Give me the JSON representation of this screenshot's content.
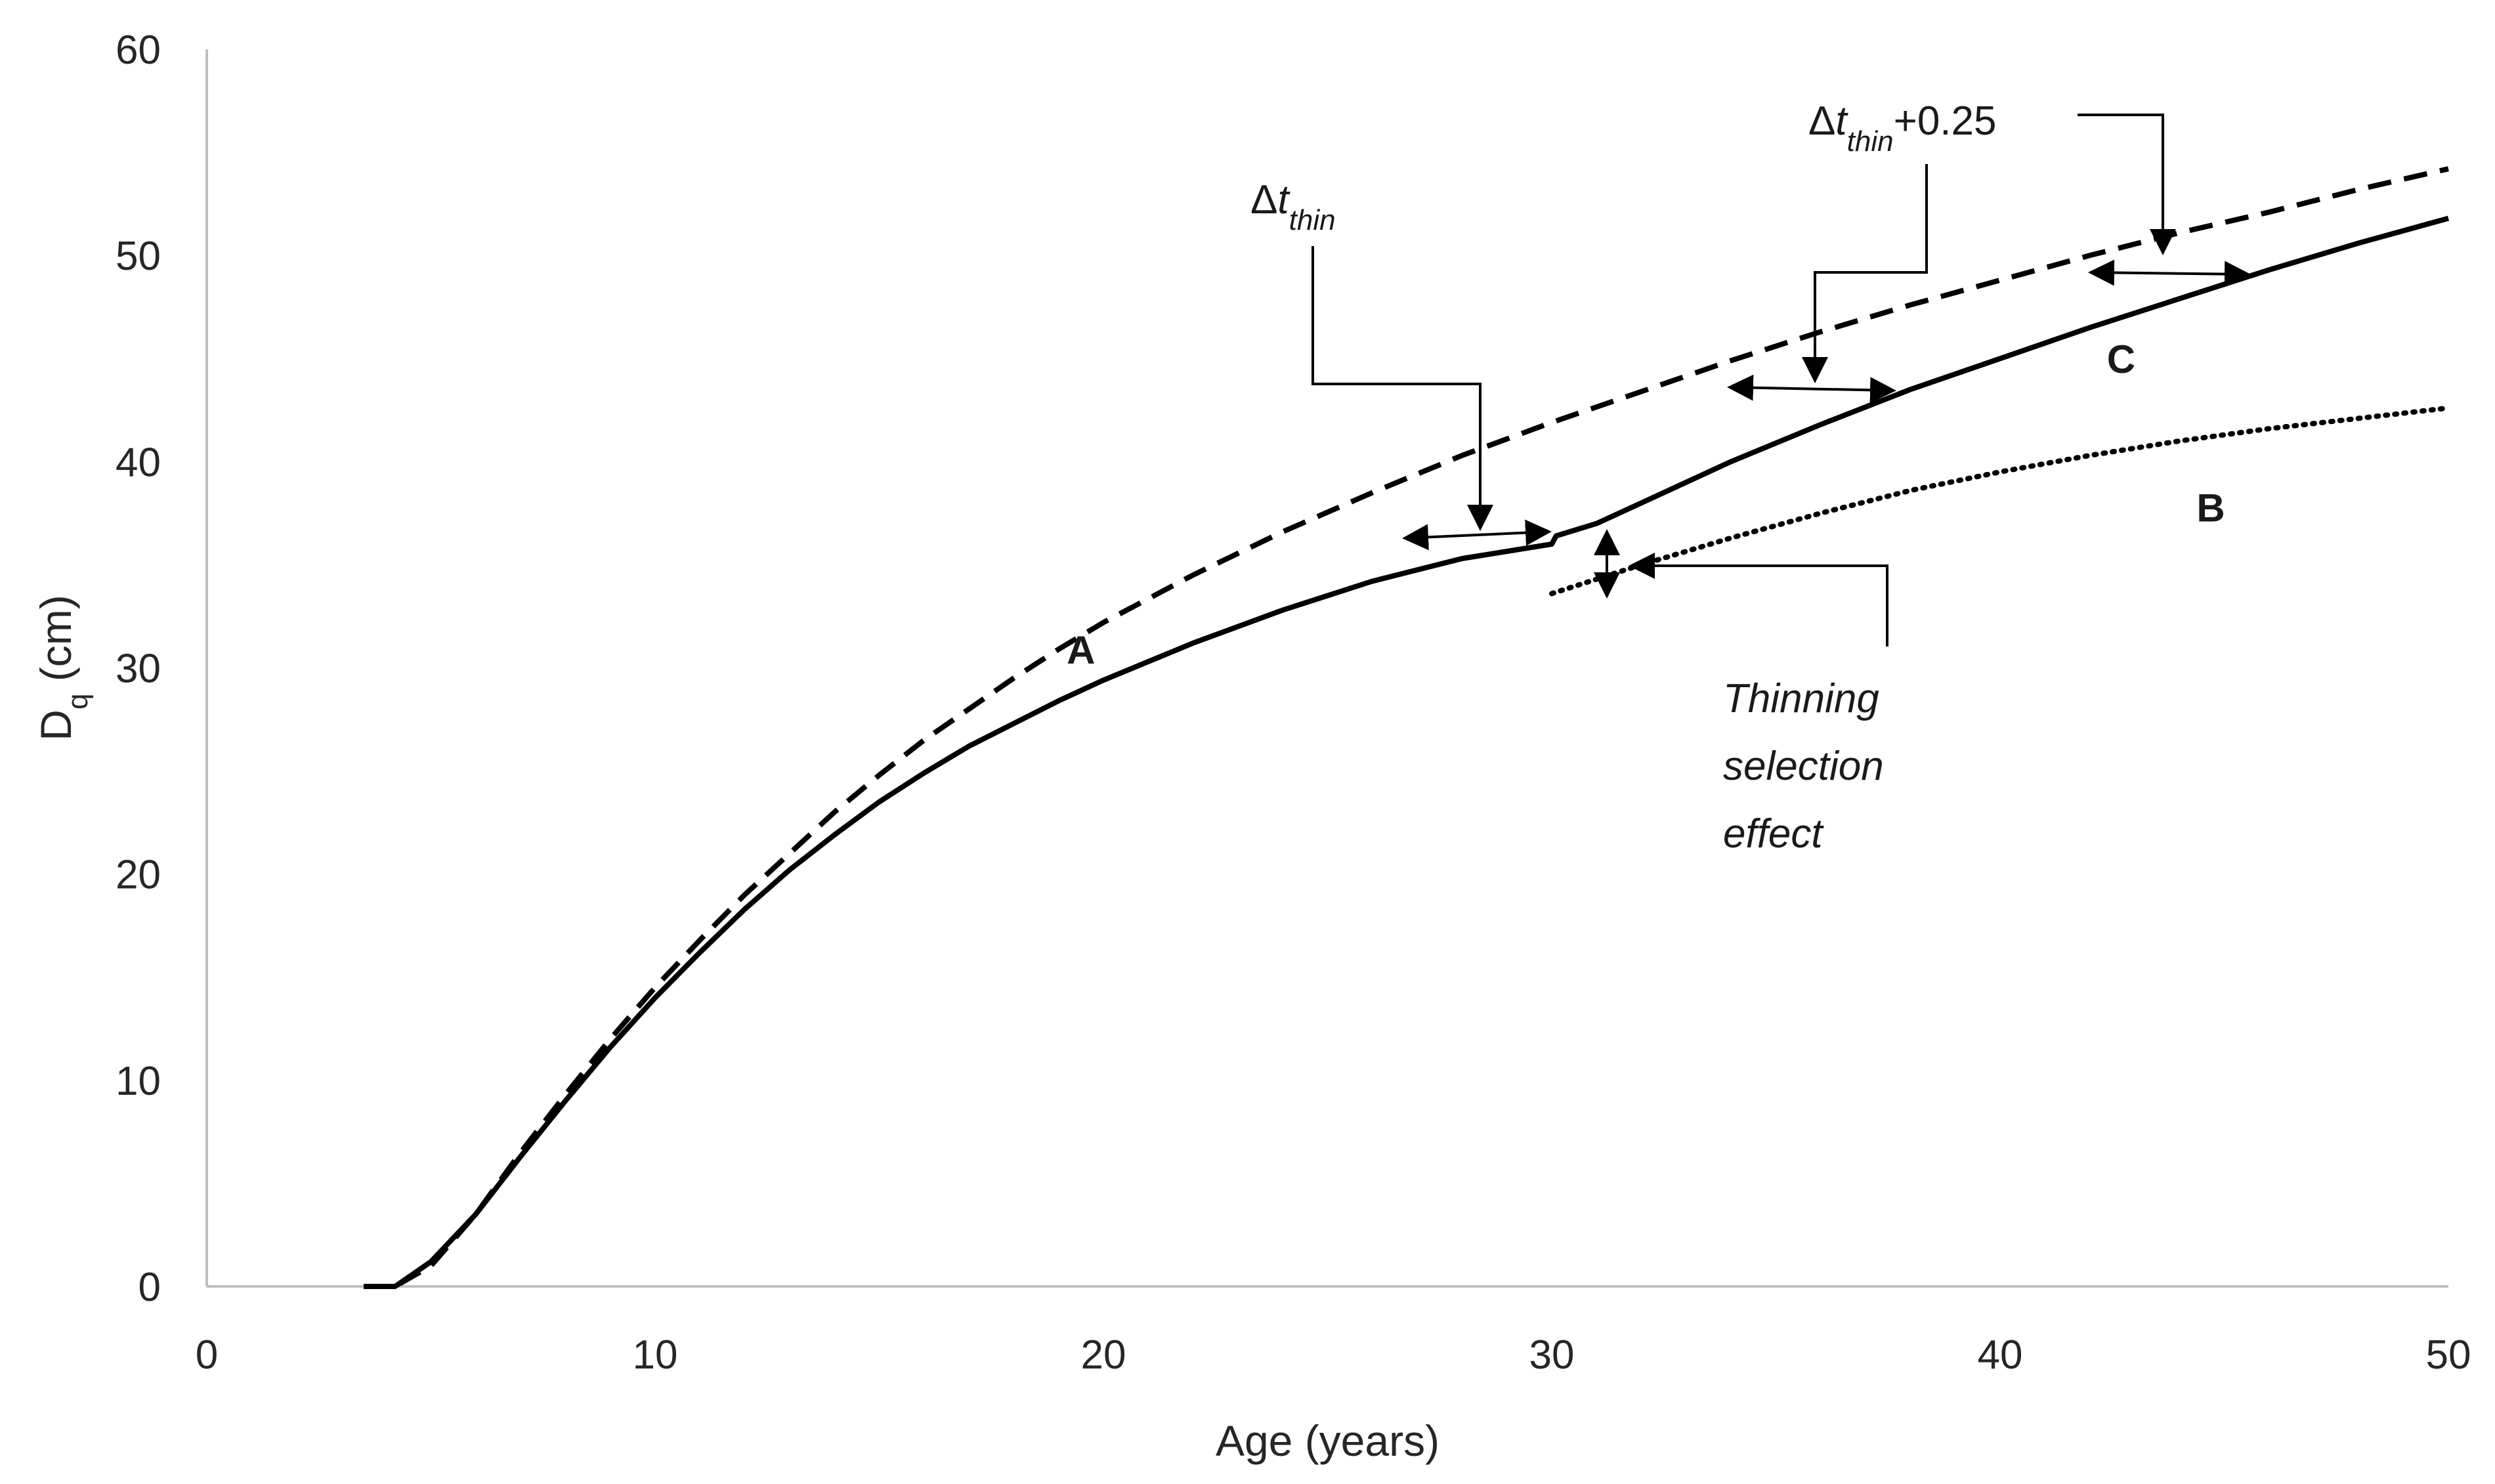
{
  "chart_data": {
    "type": "line",
    "title": "",
    "xlabel": "Age (years)",
    "ylabel": "D",
    "ylabel_subscript": "q",
    "ylabel_suffix": " (cm)",
    "xlim": [
      0,
      50
    ],
    "ylim": [
      0,
      60
    ],
    "x_ticks": [
      0,
      10,
      20,
      30,
      40,
      50
    ],
    "y_ticks": [
      0,
      10,
      20,
      30,
      40,
      50,
      60
    ],
    "grid": false,
    "legend": "none",
    "series": [
      {
        "name": "A",
        "style": "dashed",
        "label_at": [
          19.5,
          30.2
        ],
        "points": [
          [
            3.5,
            0
          ],
          [
            4.2,
            0
          ],
          [
            5,
            1
          ],
          [
            6,
            3.5
          ],
          [
            7,
            6.5
          ],
          [
            8,
            9.3
          ],
          [
            9,
            12
          ],
          [
            10,
            14.5
          ],
          [
            11,
            16.8
          ],
          [
            12,
            19
          ],
          [
            13,
            21
          ],
          [
            14,
            23
          ],
          [
            15,
            24.8
          ],
          [
            16,
            26.5
          ],
          [
            17,
            28
          ],
          [
            18,
            29.5
          ],
          [
            19,
            30.9
          ],
          [
            20,
            32.2
          ],
          [
            22,
            34.5
          ],
          [
            24,
            36.6
          ],
          [
            26,
            38.5
          ],
          [
            28,
            40.3
          ],
          [
            30,
            41.9
          ],
          [
            32,
            43.4
          ],
          [
            34,
            44.9
          ],
          [
            36,
            46.3
          ],
          [
            38,
            47.6
          ],
          [
            40,
            48.8
          ],
          [
            42,
            50
          ],
          [
            44,
            51.1
          ],
          [
            46,
            52.1
          ],
          [
            48,
            53.2
          ],
          [
            50,
            54.2
          ]
        ]
      },
      {
        "name": "C",
        "style": "solid",
        "label_at": [
          42.7,
          44.3
        ],
        "points": [
          [
            3.5,
            0
          ],
          [
            4.2,
            0
          ],
          [
            5,
            1.2
          ],
          [
            6,
            3.5
          ],
          [
            7,
            6.3
          ],
          [
            8,
            9
          ],
          [
            9,
            11.6
          ],
          [
            10,
            14
          ],
          [
            11,
            16.2
          ],
          [
            12,
            18.3
          ],
          [
            13,
            20.2
          ],
          [
            14,
            21.9
          ],
          [
            15,
            23.5
          ],
          [
            16,
            24.9
          ],
          [
            17,
            26.2
          ],
          [
            18,
            27.3
          ],
          [
            19,
            28.4
          ],
          [
            20,
            29.4
          ],
          [
            22,
            31.2
          ],
          [
            24,
            32.8
          ],
          [
            26,
            34.2
          ],
          [
            28,
            35.3
          ],
          [
            30,
            36
          ],
          [
            30.1,
            36.4
          ],
          [
            31,
            37
          ],
          [
            32,
            38
          ],
          [
            34,
            40
          ],
          [
            36,
            41.8
          ],
          [
            38,
            43.5
          ],
          [
            40,
            45
          ],
          [
            42,
            46.5
          ],
          [
            44,
            47.9
          ],
          [
            46,
            49.3
          ],
          [
            48,
            50.6
          ],
          [
            50,
            51.8
          ]
        ]
      },
      {
        "name": "B",
        "style": "dotted",
        "label_at": [
          44.7,
          37.1
        ],
        "points": [
          [
            30,
            33.6
          ],
          [
            32,
            35
          ],
          [
            34,
            36.3
          ],
          [
            36,
            37.5
          ],
          [
            38,
            38.6
          ],
          [
            40,
            39.5
          ],
          [
            42,
            40.3
          ],
          [
            44,
            41
          ],
          [
            46,
            41.6
          ],
          [
            48,
            42.1
          ],
          [
            50,
            42.6
          ]
        ]
      }
    ],
    "annotations": [
      {
        "id": "dt1",
        "delta": "Δ",
        "t": "t",
        "sub": "thin",
        "suffix": ""
      },
      {
        "id": "dt2",
        "delta": "Δ",
        "t": "t",
        "sub": "thin",
        "suffix": "+0.25"
      },
      {
        "id": "tse",
        "lines": [
          "Thinning",
          "selection",
          "effect"
        ]
      }
    ]
  }
}
